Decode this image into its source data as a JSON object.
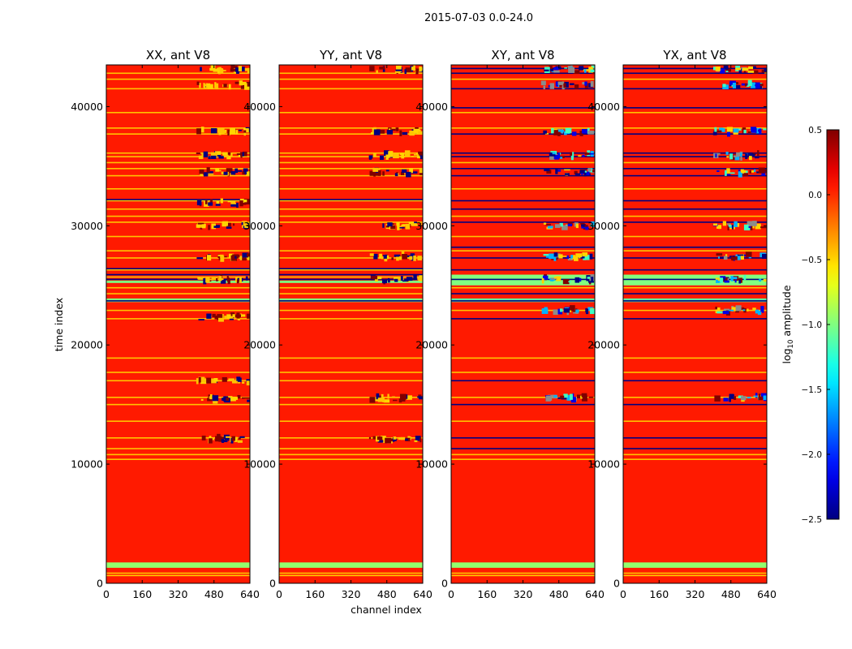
{
  "chart_data": {
    "type": "heatmap",
    "suptitle": "2015-07-03 0.0-24.0",
    "xlabel": "channel index",
    "ylabel": "time index",
    "x_range": [
      0,
      640
    ],
    "y_range": [
      0,
      43500
    ],
    "x_ticks": [
      "0",
      "160",
      "320",
      "480",
      "640"
    ],
    "y_ticks": [
      "0",
      "10000",
      "20000",
      "30000",
      "40000"
    ],
    "x_tick_values": [
      0,
      160,
      320,
      480,
      640
    ],
    "y_tick_values": [
      0,
      10000,
      20000,
      30000,
      40000
    ],
    "colorbar": {
      "label": "log10 amplitude",
      "label_base": "log",
      "label_sub": "10",
      "label_rest": " amplitude",
      "range": [
        -2.5,
        0.5
      ],
      "tick_values": [
        -2.5,
        -2.0,
        -1.5,
        -1.0,
        -0.5,
        0.0,
        0.5
      ],
      "tick_labels": [
        "−2.5",
        "−2.0",
        "−1.5",
        "−1.0",
        "−0.5",
        "0.0",
        "0.5"
      ],
      "colormap": "jet"
    },
    "base_value": 0.05,
    "panels": [
      {
        "title": "XX, ant V8",
        "flag_level": "low",
        "bands": [
          {
            "t0": 1300,
            "t1": 1750,
            "v": -0.95
          },
          {
            "t0": 600,
            "t1": 700,
            "v": -0.5
          },
          {
            "t0": 23600,
            "t1": 23900,
            "v": -1.0
          },
          {
            "t0": 25200,
            "t1": 25400,
            "v": -1.0
          }
        ],
        "lines": [
          850,
          10400,
          10800,
          11300,
          12200,
          13600,
          15000,
          15600,
          17000,
          17700,
          18900,
          22200,
          22900,
          24300,
          24800,
          25700,
          26300,
          27300,
          27900,
          29100,
          30300,
          30800,
          31400,
          32100,
          33100,
          34200,
          34800,
          35300,
          35800,
          36100,
          37700,
          38200,
          39500,
          41500,
          42300,
          42800
        ],
        "dark_lines": [
          23700,
          25500,
          25900,
          26400,
          32200
        ],
        "noise_rows": [
          12100,
          15500,
          17000,
          22300,
          25500,
          27400,
          30000,
          31900,
          34500,
          35900,
          37900,
          41800,
          43100
        ]
      },
      {
        "title": "YY, ant V8",
        "flag_level": "low",
        "bands": [
          {
            "t0": 1300,
            "t1": 1750,
            "v": -0.95
          },
          {
            "t0": 600,
            "t1": 700,
            "v": -0.5
          },
          {
            "t0": 23600,
            "t1": 23900,
            "v": -1.0
          },
          {
            "t0": 25200,
            "t1": 25400,
            "v": -1.0
          }
        ],
        "lines": [
          850,
          10400,
          10800,
          11300,
          12200,
          13600,
          15000,
          15600,
          17000,
          17700,
          18900,
          22200,
          22900,
          24300,
          24800,
          25700,
          26300,
          27300,
          27900,
          29100,
          30300,
          30800,
          31400,
          32100,
          33100,
          34200,
          34800,
          35300,
          35800,
          36100,
          37700,
          38200,
          39500,
          41500,
          42300,
          42800
        ],
        "dark_lines": [
          23700,
          25500,
          25900,
          26400,
          32200
        ],
        "noise_rows": [
          12100,
          15500,
          25500,
          27400,
          30000,
          34500,
          35900,
          37900,
          43100
        ]
      },
      {
        "title": "XY, ant V8",
        "flag_level": "deep",
        "bands": [
          {
            "t0": 1300,
            "t1": 1750,
            "v": -0.95
          },
          {
            "t0": 600,
            "t1": 700,
            "v": -0.5
          },
          {
            "t0": 23600,
            "t1": 23900,
            "v": -1.1
          },
          {
            "t0": 25000,
            "t1": 25900,
            "v": -1.0
          }
        ],
        "lines": [
          850,
          10400,
          10800,
          13600,
          15600,
          17700,
          18900,
          22900,
          24800,
          27900,
          29100,
          30800,
          33100,
          35300,
          38200,
          39500,
          42300
        ],
        "dark_lines": [
          11300,
          12200,
          15000,
          17000,
          22200,
          23700,
          24300,
          25500,
          26300,
          27300,
          28200,
          30300,
          31400,
          32100,
          34200,
          34800,
          35800,
          36100,
          37700,
          39900,
          41500,
          42800,
          43200
        ],
        "noise_rows": [
          15600,
          22900,
          25500,
          27400,
          30000,
          34500,
          35900,
          37900,
          41800,
          43100
        ]
      },
      {
        "title": "YX, ant V8",
        "flag_level": "deep",
        "bands": [
          {
            "t0": 1300,
            "t1": 1750,
            "v": -0.95
          },
          {
            "t0": 600,
            "t1": 700,
            "v": -0.5
          },
          {
            "t0": 23600,
            "t1": 23900,
            "v": -1.1
          },
          {
            "t0": 25000,
            "t1": 25900,
            "v": -1.0
          }
        ],
        "lines": [
          850,
          10400,
          10800,
          13600,
          15600,
          17700,
          18900,
          22900,
          24800,
          27900,
          29100,
          30800,
          33100,
          35300,
          38200,
          39500,
          42300
        ],
        "dark_lines": [
          11300,
          12200,
          15000,
          17000,
          22200,
          23700,
          24300,
          25500,
          26300,
          27300,
          28200,
          30300,
          31400,
          32100,
          34200,
          34800,
          35800,
          36100,
          37700,
          39900,
          41500,
          42800,
          43200
        ],
        "noise_rows": [
          15600,
          22900,
          25500,
          27400,
          30000,
          34500,
          35900,
          37900,
          41800,
          43100
        ]
      }
    ]
  }
}
